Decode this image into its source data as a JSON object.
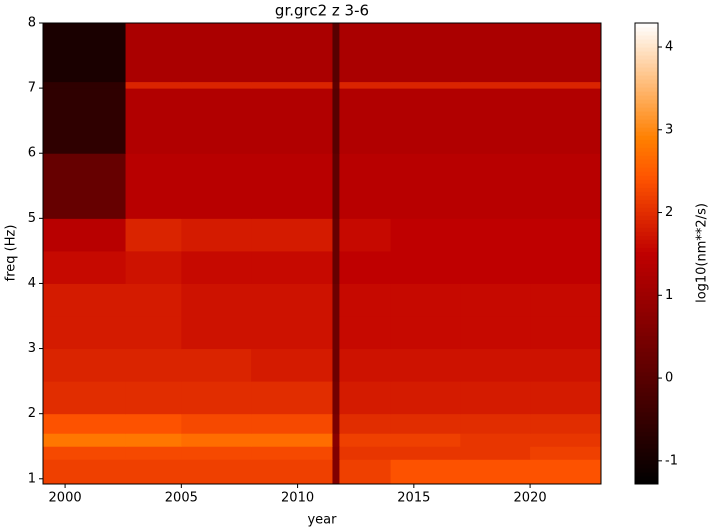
{
  "chart_data": {
    "type": "heatmap",
    "title": "gr.grc2 z 3-6",
    "x_label": "year",
    "y_label": "freq (Hz)",
    "colorbar_label": "log10(nm**2/s)",
    "colormap": "gist_heat",
    "x_edges": [
      1999.05,
      2002.6,
      2005,
      2008,
      2011.5,
      2011.8,
      2014,
      2017,
      2020,
      2023.05
    ],
    "y_edges": [
      0.92,
      1.3,
      1.5,
      1.7,
      2.0,
      2.5,
      3.0,
      3.5,
      4.0,
      4.5,
      5.0,
      6.0,
      7.0,
      7.1,
      8.0
    ],
    "values": [
      [
        2.2,
        2.2,
        2.2,
        2.2,
        0.6,
        2.2,
        2.4,
        2.4,
        2.4
      ],
      [
        2.3,
        2.3,
        2.3,
        2.3,
        0.6,
        2.1,
        2.1,
        2.1,
        2.2
      ],
      [
        2.8,
        2.8,
        2.7,
        2.7,
        0.7,
        2.2,
        2.2,
        2.1,
        2.1
      ],
      [
        2.4,
        2.4,
        2.3,
        2.3,
        0.5,
        2.0,
        2.0,
        2.0,
        2.0
      ],
      [
        2.0,
        2.0,
        2.0,
        2.0,
        0.4,
        1.8,
        1.8,
        1.8,
        1.8
      ],
      [
        1.9,
        1.9,
        1.9,
        1.8,
        0.3,
        1.7,
        1.7,
        1.7,
        1.7
      ],
      [
        1.8,
        1.8,
        1.7,
        1.7,
        0.3,
        1.6,
        1.6,
        1.6,
        1.6
      ],
      [
        1.8,
        1.8,
        1.7,
        1.7,
        0.3,
        1.6,
        1.6,
        1.6,
        1.6
      ],
      [
        1.6,
        1.7,
        1.6,
        1.6,
        0.2,
        1.5,
        1.5,
        1.5,
        1.5
      ],
      [
        1.4,
        1.9,
        1.8,
        1.8,
        0.2,
        1.6,
        1.5,
        1.5,
        1.5
      ],
      [
        0.2,
        1.4,
        1.4,
        1.4,
        0.1,
        1.4,
        1.4,
        1.4,
        1.4
      ],
      [
        -0.6,
        1.3,
        1.3,
        1.3,
        0.0,
        1.3,
        1.3,
        1.3,
        1.3
      ],
      [
        -0.6,
        1.9,
        1.9,
        1.9,
        0.1,
        1.9,
        1.9,
        1.9,
        1.9
      ],
      [
        -0.9,
        1.2,
        1.2,
        1.2,
        0.0,
        1.2,
        1.2,
        1.2,
        1.2
      ]
    ],
    "xlim": [
      1999.05,
      2023.05
    ],
    "ylim": [
      0.92,
      8
    ],
    "xticks": [
      2000,
      2005,
      2010,
      2015,
      2020
    ],
    "yticks": [
      1,
      2,
      3,
      4,
      5,
      6,
      7,
      8
    ],
    "clim": [
      -1.28,
      4.29
    ],
    "colorbar_ticks": [
      -1,
      0,
      1,
      2,
      3,
      4
    ]
  }
}
